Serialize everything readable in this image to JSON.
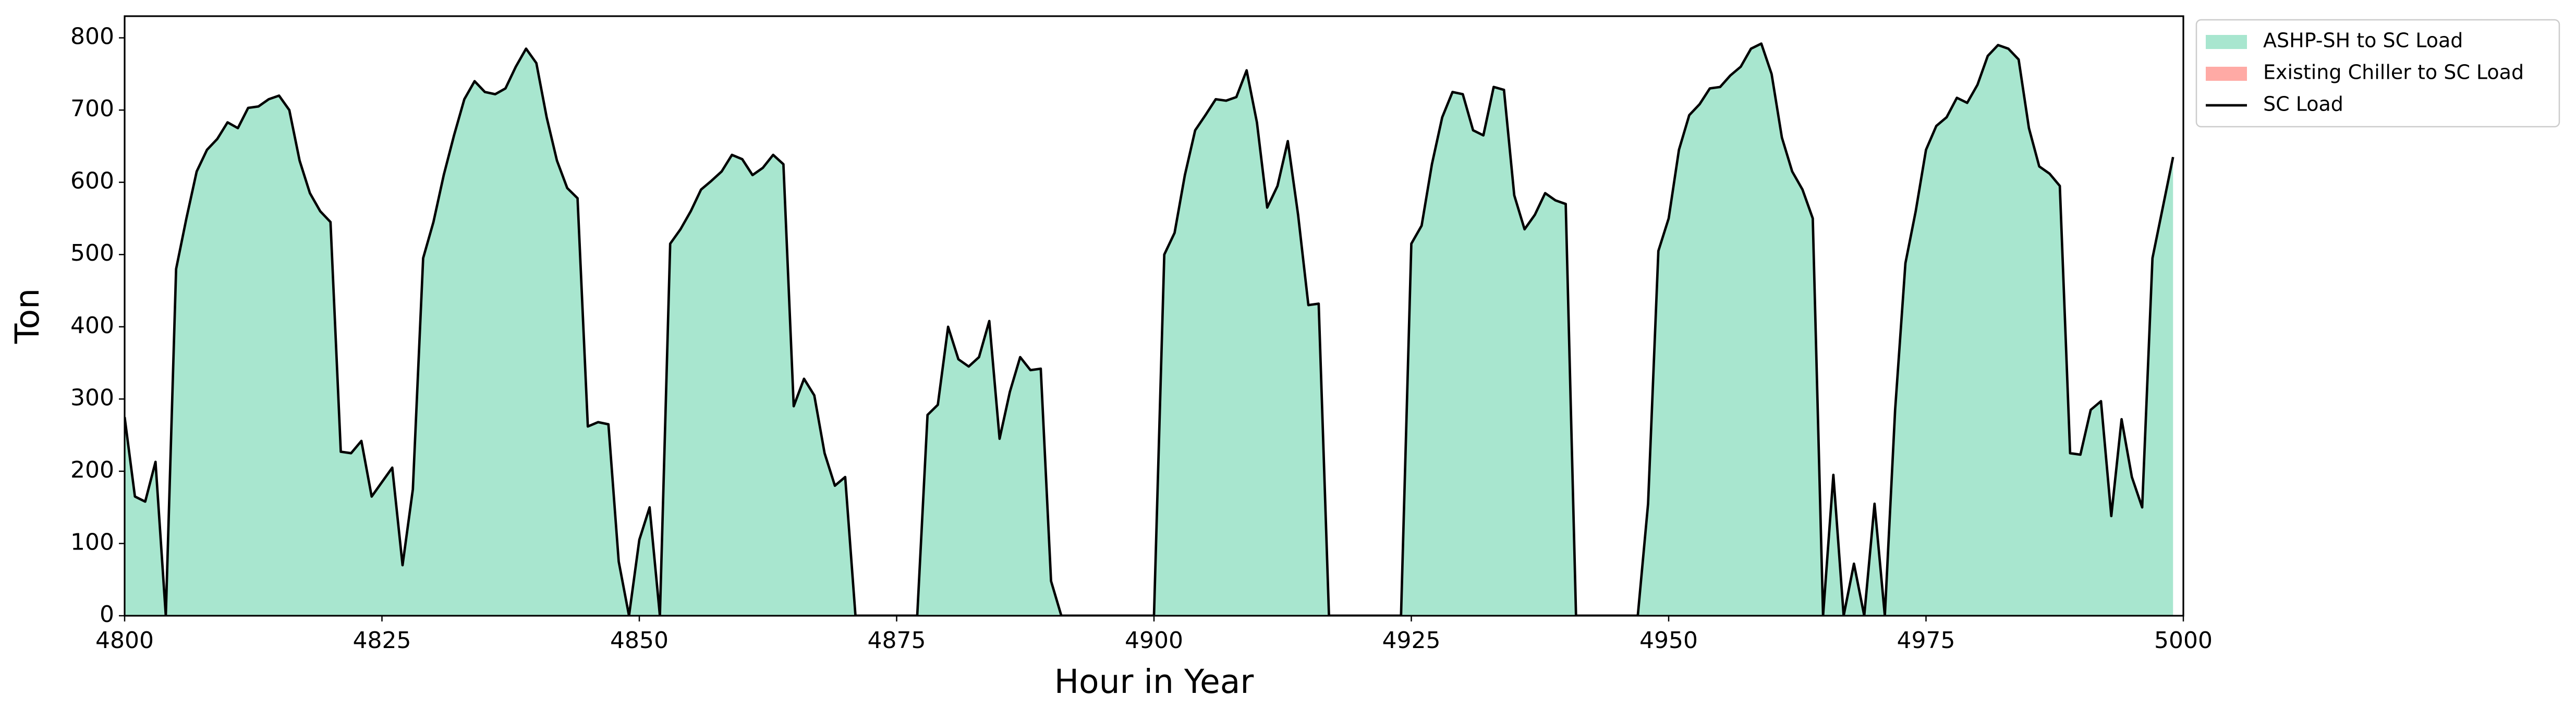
{
  "chart_data": {
    "type": "area",
    "xlabel": "Hour in Year",
    "ylabel": "Ton",
    "xlim": [
      4800,
      5000
    ],
    "ylim": [
      0,
      830
    ],
    "xticks": [
      4800,
      4825,
      4850,
      4875,
      4900,
      4925,
      4950,
      4975,
      5000
    ],
    "yticks": [
      0,
      100,
      200,
      300,
      400,
      500,
      600,
      700,
      800
    ],
    "legend": "outside-upper-right",
    "x": [
      4800,
      4801,
      4802,
      4803,
      4804,
      4805,
      4806,
      4807,
      4808,
      4809,
      4810,
      4811,
      4812,
      4813,
      4814,
      4815,
      4816,
      4817,
      4818,
      4819,
      4820,
      4821,
      4822,
      4823,
      4824,
      4825,
      4826,
      4827,
      4828,
      4829,
      4830,
      4831,
      4832,
      4833,
      4834,
      4835,
      4836,
      4837,
      4838,
      4839,
      4840,
      4841,
      4842,
      4843,
      4844,
      4845,
      4846,
      4847,
      4848,
      4849,
      4850,
      4851,
      4852,
      4853,
      4854,
      4855,
      4856,
      4857,
      4858,
      4859,
      4860,
      4861,
      4862,
      4863,
      4864,
      4865,
      4866,
      4867,
      4868,
      4869,
      4870,
      4871,
      4872,
      4873,
      4874,
      4875,
      4876,
      4877,
      4878,
      4879,
      4880,
      4881,
      4882,
      4883,
      4884,
      4885,
      4886,
      4887,
      4888,
      4889,
      4890,
      4891,
      4892,
      4893,
      4894,
      4895,
      4896,
      4897,
      4898,
      4899,
      4900,
      4901,
      4902,
      4903,
      4904,
      4905,
      4906,
      4907,
      4908,
      4909,
      4910,
      4911,
      4912,
      4913,
      4914,
      4915,
      4916,
      4917,
      4918,
      4919,
      4920,
      4921,
      4922,
      4923,
      4924,
      4925,
      4926,
      4927,
      4928,
      4929,
      4930,
      4931,
      4932,
      4933,
      4934,
      4935,
      4936,
      4937,
      4938,
      4939,
      4940,
      4941,
      4942,
      4943,
      4944,
      4945,
      4946,
      4947,
      4948,
      4949,
      4950,
      4951,
      4952,
      4953,
      4954,
      4955,
      4956,
      4957,
      4958,
      4959,
      4960,
      4961,
      4962,
      4963,
      4964,
      4965,
      4966,
      4967,
      4968,
      4969,
      4970,
      4971,
      4972,
      4973,
      4974,
      4975,
      4976,
      4977,
      4978,
      4979,
      4980,
      4981,
      4982,
      4983,
      4984,
      4985,
      4986,
      4987,
      4988,
      4989,
      4990,
      4991,
      4992,
      4993,
      4994,
      4995,
      4996,
      4997,
      4998,
      4999
    ],
    "series": [
      {
        "name": "ASHP-SH to SC Load",
        "type": "area",
        "color": "#a8e6cf",
        "values": [
          275,
          165,
          158,
          213,
          0,
          480,
          550,
          615,
          645,
          660,
          683,
          675,
          703,
          705,
          715,
          720,
          700,
          630,
          585,
          560,
          545,
          227,
          225,
          242,
          165,
          185,
          205,
          70,
          175,
          495,
          545,
          610,
          665,
          715,
          740,
          725,
          722,
          730,
          760,
          785,
          765,
          690,
          630,
          592,
          578,
          262,
          268,
          265,
          75,
          0,
          105,
          150,
          0,
          515,
          535,
          560,
          590,
          602,
          615,
          638,
          632,
          610,
          620,
          638,
          625,
          290,
          328,
          305,
          225,
          180,
          192,
          0,
          0,
          0,
          0,
          0,
          0,
          0,
          278,
          292,
          400,
          355,
          345,
          358,
          408,
          245,
          310,
          358,
          340,
          342,
          48,
          0,
          0,
          0,
          0,
          0,
          0,
          0,
          0,
          0,
          0,
          500,
          530,
          610,
          672,
          693,
          715,
          713,
          718,
          755,
          683,
          565,
          595,
          657,
          555,
          430,
          432,
          0,
          0,
          0,
          0,
          0,
          0,
          0,
          0,
          515,
          540,
          625,
          690,
          725,
          722,
          672,
          665,
          732,
          728,
          582,
          535,
          555,
          585,
          575,
          570,
          0,
          0,
          0,
          0,
          0,
          0,
          0,
          155,
          505,
          550,
          645,
          693,
          708,
          730,
          732,
          748,
          760,
          785,
          792,
          750,
          662,
          615,
          590,
          550,
          0,
          195,
          0,
          72,
          0,
          155,
          0,
          285,
          488,
          560,
          645,
          678,
          690,
          717,
          710,
          735,
          775,
          790,
          785,
          770,
          675,
          622,
          612,
          595,
          225,
          223,
          285,
          297,
          138,
          272,
          192,
          150,
          495,
          565,
          635
        ]
      },
      {
        "name": "Existing Chiller to SC Load",
        "type": "area",
        "color": "#ffaaa5",
        "values": [
          0,
          0,
          0,
          0,
          0,
          0,
          0,
          0,
          0,
          0,
          0,
          0,
          0,
          0,
          0,
          0,
          0,
          0,
          0,
          0,
          0,
          0,
          0,
          0,
          0,
          0,
          0,
          0,
          0,
          0,
          0,
          0,
          0,
          0,
          0,
          0,
          0,
          0,
          0,
          0,
          0,
          0,
          0,
          0,
          0,
          0,
          0,
          0,
          0,
          0,
          0,
          0,
          0,
          0,
          0,
          0,
          0,
          0,
          0,
          0,
          0,
          0,
          0,
          0,
          0,
          0,
          0,
          0,
          0,
          0,
          0,
          0,
          0,
          0,
          0,
          0,
          0,
          0,
          0,
          0,
          0,
          0,
          0,
          0,
          0,
          0,
          0,
          0,
          0,
          0,
          0,
          0,
          0,
          0,
          0,
          0,
          0,
          0,
          0,
          0,
          0,
          0,
          0,
          0,
          0,
          0,
          0,
          0,
          0,
          0,
          0,
          0,
          0,
          0,
          0,
          0,
          0,
          0,
          0,
          0,
          0,
          0,
          0,
          0,
          0,
          0,
          0,
          0,
          0,
          0,
          0,
          0,
          0,
          0,
          0,
          0,
          0,
          0,
          0,
          0,
          0,
          0,
          0,
          0,
          0,
          0,
          0,
          0,
          0,
          0,
          0,
          0,
          0,
          0,
          0,
          0,
          0,
          0,
          0,
          0,
          0,
          0,
          0,
          0,
          0,
          0,
          0,
          0,
          0,
          0,
          0,
          0,
          0,
          0,
          0,
          0,
          0,
          0,
          0,
          0,
          0,
          0,
          0,
          0,
          0,
          0,
          0,
          0,
          0,
          0,
          0,
          0,
          0,
          0,
          0,
          0,
          0,
          0,
          0,
          0
        ]
      },
      {
        "name": "SC Load",
        "type": "line",
        "color": "#000000",
        "values": [
          275,
          165,
          158,
          213,
          0,
          480,
          550,
          615,
          645,
          660,
          683,
          675,
          703,
          705,
          715,
          720,
          700,
          630,
          585,
          560,
          545,
          227,
          225,
          242,
          165,
          185,
          205,
          70,
          175,
          495,
          545,
          610,
          665,
          715,
          740,
          725,
          722,
          730,
          760,
          785,
          765,
          690,
          630,
          592,
          578,
          262,
          268,
          265,
          75,
          0,
          105,
          150,
          0,
          515,
          535,
          560,
          590,
          602,
          615,
          638,
          632,
          610,
          620,
          638,
          625,
          290,
          328,
          305,
          225,
          180,
          192,
          0,
          0,
          0,
          0,
          0,
          0,
          0,
          278,
          292,
          400,
          355,
          345,
          358,
          408,
          245,
          310,
          358,
          340,
          342,
          48,
          0,
          0,
          0,
          0,
          0,
          0,
          0,
          0,
          0,
          0,
          500,
          530,
          610,
          672,
          693,
          715,
          713,
          718,
          755,
          683,
          565,
          595,
          657,
          555,
          430,
          432,
          0,
          0,
          0,
          0,
          0,
          0,
          0,
          0,
          515,
          540,
          625,
          690,
          725,
          722,
          672,
          665,
          732,
          728,
          582,
          535,
          555,
          585,
          575,
          570,
          0,
          0,
          0,
          0,
          0,
          0,
          0,
          155,
          505,
          550,
          645,
          693,
          708,
          730,
          732,
          748,
          760,
          785,
          792,
          750,
          662,
          615,
          590,
          550,
          0,
          195,
          0,
          72,
          0,
          155,
          0,
          285,
          488,
          560,
          645,
          678,
          690,
          717,
          710,
          735,
          775,
          790,
          785,
          770,
          675,
          622,
          612,
          595,
          225,
          223,
          285,
          297,
          138,
          272,
          192,
          150,
          495,
          565,
          635
        ]
      }
    ]
  }
}
